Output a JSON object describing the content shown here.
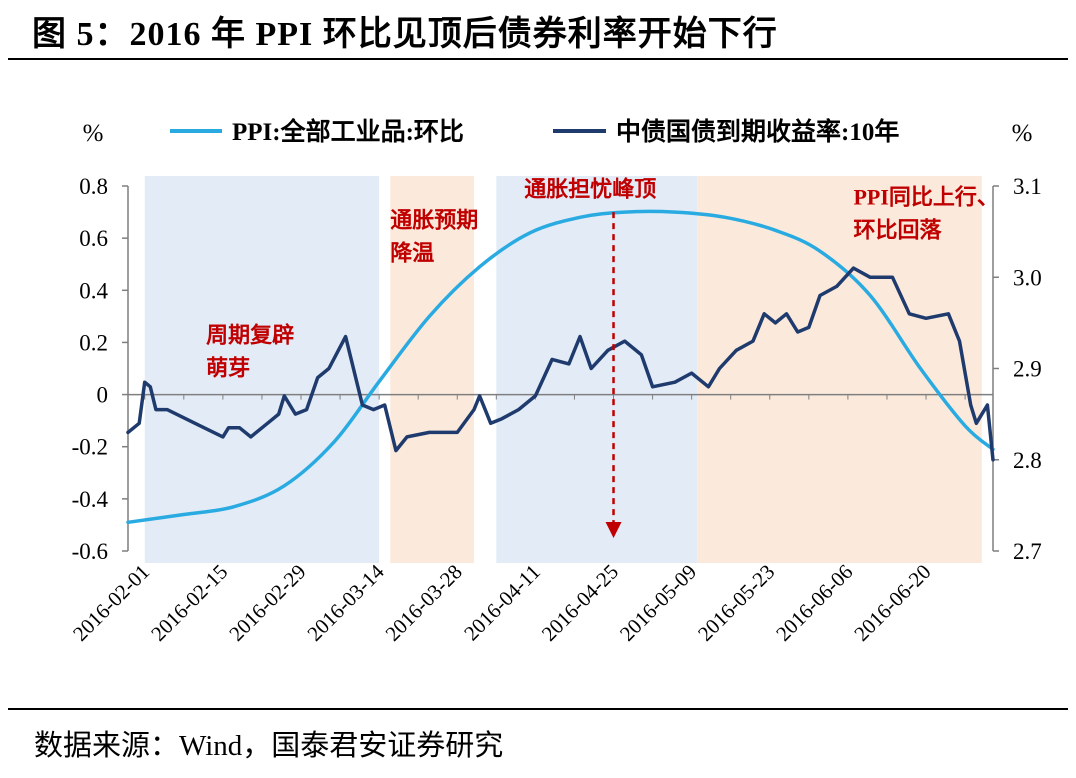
{
  "figure": {
    "title": "图 5：2016 年 PPI 环比见顶后债券利率开始下行",
    "source": "数据来源：Wind，国泰君安证券研究"
  },
  "colors": {
    "ppi": "#29ABE2",
    "bond": "#1F3B6E",
    "shade_blue": "#E3EBF6",
    "shade_orange": "#FBEADC",
    "annotation": "#C00000",
    "zero_line": "#7F7F7F"
  },
  "chart_data": {
    "type": "line",
    "title": "",
    "left_axis": {
      "label": "%",
      "ylim": [
        -0.6,
        0.8
      ],
      "ticks": [
        0.8,
        0.6,
        0.4,
        0.2,
        0,
        -0.2,
        -0.4,
        -0.6
      ],
      "tick_labels": [
        "0.8",
        "0.6",
        "0.4",
        "0.2",
        "0",
        "-0.2",
        "-0.4",
        "-0.6"
      ]
    },
    "right_axis": {
      "label": "%",
      "ylim": [
        2.7,
        3.1
      ],
      "ticks": [
        3.1,
        3.0,
        2.9,
        2.8,
        2.7
      ],
      "tick_labels": [
        "3.1",
        "3.0",
        "2.9",
        "2.8",
        "2.7"
      ]
    },
    "x_range": [
      "2016-01-29",
      "2016-07-02"
    ],
    "x_tick_labels": [
      "2016-02-01",
      "2016-02-15",
      "2016-02-29",
      "2016-03-14",
      "2016-03-28",
      "2016-04-11",
      "2016-04-25",
      "2016-05-09",
      "2016-05-23",
      "2016-06-06",
      "2016-06-20"
    ],
    "legend": [
      "PPI:全部工业品:环比",
      "中债国债到期收益率:10年"
    ],
    "legend_position": "top",
    "shaded_regions": [
      {
        "start": "2016-02-01",
        "end": "2016-03-14",
        "color": "blue"
      },
      {
        "start": "2016-03-16",
        "end": "2016-03-31",
        "color": "orange"
      },
      {
        "start": "2016-04-04",
        "end": "2016-05-10",
        "color": "blue"
      },
      {
        "start": "2016-05-10",
        "end": "2016-06-30",
        "color": "orange"
      }
    ],
    "annotations": [
      {
        "lines": [
          "周期复辟",
          "萌芽"
        ],
        "date": "2016-02-12",
        "value": 0.2
      },
      {
        "lines": [
          "通胀预期",
          "降温"
        ],
        "date": "2016-03-16",
        "value": 0.64
      },
      {
        "lines": [
          "通胀担忧峰顶"
        ],
        "date": "2016-04-09",
        "value": 0.76
      },
      {
        "lines": [
          "PPI同比上行、",
          "环比回落"
        ],
        "date": "2016-06-07",
        "value": 0.73
      }
    ],
    "peak_marker": {
      "date": "2016-04-25",
      "from": 0.7,
      "to": -0.55
    },
    "series": [
      {
        "name": "PPI:全部工业品:环比",
        "axis": "left",
        "points": [
          [
            "2016-01-29",
            -0.49
          ],
          [
            "2016-02-08",
            -0.46
          ],
          [
            "2016-02-17",
            -0.43
          ],
          [
            "2016-02-26",
            -0.35
          ],
          [
            "2016-03-06",
            -0.18
          ],
          [
            "2016-03-14",
            0.05
          ],
          [
            "2016-03-23",
            0.3
          ],
          [
            "2016-04-01",
            0.49
          ],
          [
            "2016-04-10",
            0.62
          ],
          [
            "2016-04-19",
            0.68
          ],
          [
            "2016-04-27",
            0.7
          ],
          [
            "2016-05-06",
            0.7
          ],
          [
            "2016-05-15",
            0.68
          ],
          [
            "2016-05-24",
            0.63
          ],
          [
            "2016-06-01",
            0.55
          ],
          [
            "2016-06-10",
            0.38
          ],
          [
            "2016-06-19",
            0.1
          ],
          [
            "2016-06-27",
            -0.12
          ],
          [
            "2016-07-02",
            -0.21
          ]
        ]
      },
      {
        "name": "中债国债到期收益率:10年",
        "axis": "right",
        "points": [
          [
            "2016-01-29",
            2.83
          ],
          [
            "2016-01-31",
            2.84
          ],
          [
            "2016-02-01",
            2.885
          ],
          [
            "2016-02-02",
            2.88
          ],
          [
            "2016-02-03",
            2.855
          ],
          [
            "2016-02-05",
            2.855
          ],
          [
            "2016-02-10",
            2.84
          ],
          [
            "2016-02-15",
            2.825
          ],
          [
            "2016-02-16",
            2.835
          ],
          [
            "2016-02-18",
            2.835
          ],
          [
            "2016-02-20",
            2.825
          ],
          [
            "2016-02-23",
            2.84
          ],
          [
            "2016-02-25",
            2.85
          ],
          [
            "2016-02-26",
            2.87
          ],
          [
            "2016-02-28",
            2.85
          ],
          [
            "2016-03-01",
            2.855
          ],
          [
            "2016-03-03",
            2.89
          ],
          [
            "2016-03-05",
            2.9
          ],
          [
            "2016-03-08",
            2.935
          ],
          [
            "2016-03-11",
            2.86
          ],
          [
            "2016-03-13",
            2.855
          ],
          [
            "2016-03-15",
            2.86
          ],
          [
            "2016-03-17",
            2.81
          ],
          [
            "2016-03-19",
            2.825
          ],
          [
            "2016-03-23",
            2.83
          ],
          [
            "2016-03-28",
            2.83
          ],
          [
            "2016-03-31",
            2.855
          ],
          [
            "2016-04-01",
            2.87
          ],
          [
            "2016-04-03",
            2.84
          ],
          [
            "2016-04-05",
            2.845
          ],
          [
            "2016-04-08",
            2.855
          ],
          [
            "2016-04-11",
            2.87
          ],
          [
            "2016-04-14",
            2.91
          ],
          [
            "2016-04-17",
            2.905
          ],
          [
            "2016-04-19",
            2.935
          ],
          [
            "2016-04-21",
            2.9
          ],
          [
            "2016-04-24",
            2.92
          ],
          [
            "2016-04-27",
            2.93
          ],
          [
            "2016-04-30",
            2.915
          ],
          [
            "2016-05-02",
            2.88
          ],
          [
            "2016-05-06",
            2.885
          ],
          [
            "2016-05-09",
            2.895
          ],
          [
            "2016-05-12",
            2.88
          ],
          [
            "2016-05-14",
            2.9
          ],
          [
            "2016-05-17",
            2.92
          ],
          [
            "2016-05-20",
            2.93
          ],
          [
            "2016-05-22",
            2.96
          ],
          [
            "2016-05-24",
            2.95
          ],
          [
            "2016-05-26",
            2.96
          ],
          [
            "2016-05-28",
            2.94
          ],
          [
            "2016-05-30",
            2.945
          ],
          [
            "2016-06-01",
            2.98
          ],
          [
            "2016-06-04",
            2.99
          ],
          [
            "2016-06-07",
            3.01
          ],
          [
            "2016-06-10",
            3.0
          ],
          [
            "2016-06-14",
            3.0
          ],
          [
            "2016-06-17",
            2.96
          ],
          [
            "2016-06-20",
            2.955
          ],
          [
            "2016-06-24",
            2.96
          ],
          [
            "2016-06-26",
            2.93
          ],
          [
            "2016-06-28",
            2.86
          ],
          [
            "2016-06-29",
            2.84
          ],
          [
            "2016-07-01",
            2.86
          ],
          [
            "2016-07-02",
            2.8
          ]
        ]
      }
    ]
  }
}
